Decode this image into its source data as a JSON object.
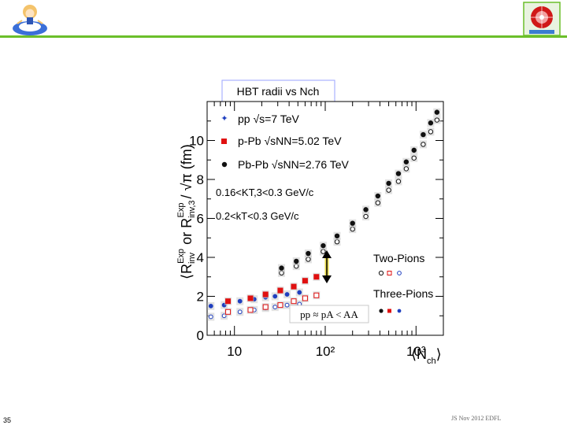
{
  "slide": {
    "page_number": "35",
    "footer_note": "JS Nov 2012 EDFL",
    "accent_color": "#6bbf2a"
  },
  "chart_data": {
    "type": "scatter",
    "title": "HBT radii vs Nch",
    "x_scale": "log",
    "xlim": [
      5,
      2000
    ],
    "ylim": [
      0,
      12
    ],
    "ytick_labels": [
      "0",
      "2",
      "4",
      "6",
      "8",
      "10"
    ],
    "xtick_labels": [
      "10",
      "10²",
      "10³"
    ],
    "ylabel_parts": [
      "⟨R",
      "inv",
      "Exp",
      " or R",
      "inv,3",
      "Exp",
      " / √π (fm)"
    ],
    "xlabel_parts": [
      "⟨N",
      "ch",
      "⟩"
    ],
    "legend": {
      "pp": "pp √s=7 TeV",
      "ppb": "p-Pb √sNN=5.02 TeV",
      "pbpb": "Pb-Pb √sNN=2.76 TeV"
    },
    "cut_labels": [
      "0.16<KT,3<0.3 GeV/c",
      "0.2<kT<0.3 GeV/c"
    ],
    "marker_labels": [
      "Two-Pions",
      "Three-Pions"
    ],
    "annotation": "pp ≈ pA < AA",
    "colors": {
      "pp": "#1f3fbf",
      "ppb": "#e01010",
      "pbpb": "#111111"
    },
    "series": [
      {
        "name": "pp √s=7 TeV",
        "kind": "two",
        "x": [
          5.5,
          7.7,
          11.5,
          16.5,
          22,
          28,
          38,
          52
        ],
        "y": [
          0.95,
          1.0,
          1.2,
          1.3,
          1.4,
          1.45,
          1.55,
          1.6
        ]
      },
      {
        "name": "pp √s=7 TeV",
        "kind": "three",
        "x": [
          5.5,
          7.7,
          11.5,
          16.5,
          22,
          28,
          38,
          52
        ],
        "y": [
          1.5,
          1.55,
          1.75,
          1.85,
          1.95,
          2.0,
          2.1,
          2.2
        ]
      },
      {
        "name": "p-Pb √sNN=5.02 TeV",
        "kind": "two",
        "x": [
          8.5,
          15,
          22,
          32,
          45,
          60,
          80
        ],
        "y": [
          1.2,
          1.3,
          1.45,
          1.55,
          1.75,
          1.9,
          2.05
        ]
      },
      {
        "name": "p-Pb √sNN=5.02 TeV",
        "kind": "three",
        "x": [
          8.5,
          15,
          22,
          32,
          45,
          60,
          80
        ],
        "y": [
          1.75,
          1.9,
          2.1,
          2.3,
          2.5,
          2.8,
          3.0
        ]
      },
      {
        "name": "Pb-Pb √sNN=2.76 TeV",
        "kind": "two",
        "x": [
          33,
          48,
          65,
          95,
          135,
          200,
          280,
          380,
          500,
          640,
          780,
          950,
          1200,
          1450,
          1700
        ],
        "y": [
          3.2,
          3.55,
          3.9,
          4.3,
          4.8,
          5.45,
          6.1,
          6.8,
          7.45,
          7.9,
          8.55,
          9.1,
          9.8,
          10.45,
          11.05
        ]
      },
      {
        "name": "Pb-Pb √sNN=2.76 TeV",
        "kind": "three",
        "x": [
          33,
          48,
          65,
          95,
          135,
          200,
          280,
          380,
          500,
          640,
          780,
          950,
          1200,
          1450,
          1700
        ],
        "y": [
          3.45,
          3.8,
          4.2,
          4.6,
          5.1,
          5.75,
          6.45,
          7.15,
          7.8,
          8.3,
          8.9,
          9.5,
          10.3,
          10.9,
          11.45
        ]
      }
    ]
  }
}
